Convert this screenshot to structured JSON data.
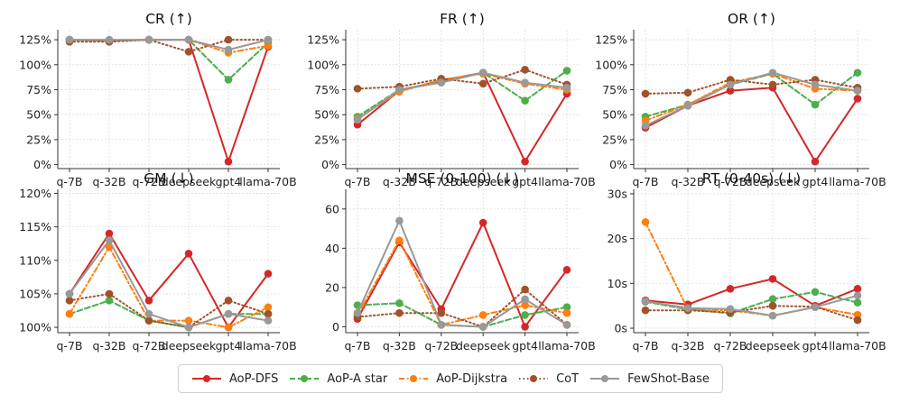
{
  "series_styles": [
    {
      "name": "AoP-DFS",
      "color": "#d62728",
      "dash": "solid"
    },
    {
      "name": "AoP-A star",
      "color": "#4cae4c",
      "dash": "dashed"
    },
    {
      "name": "AoP-Dijkstra",
      "color": "#ff7f0e",
      "dash": "dashdot"
    },
    {
      "name": "CoT",
      "color": "#a0522d",
      "dash": "dotted"
    },
    {
      "name": "FewShot-Base",
      "color": "#999999",
      "dash": "solid"
    }
  ],
  "chart_data": [
    {
      "type": "line",
      "title": "CR (↑)",
      "categories": [
        "q-7B",
        "q-32B",
        "q-72B",
        "deepseek",
        "gpt4",
        "llama-70B"
      ],
      "ylim": [
        -4,
        135
      ],
      "ticks": [
        0,
        25,
        50,
        75,
        100,
        125
      ],
      "tick_labels": [
        "0%",
        "25%",
        "50%",
        "75%",
        "100%",
        "125%"
      ],
      "series": [
        {
          "name": "AoP-DFS",
          "values": [
            125,
            124,
            125,
            125,
            3,
            118
          ]
        },
        {
          "name": "AoP-A star",
          "values": [
            125,
            124,
            125,
            125,
            85,
            122
          ]
        },
        {
          "name": "AoP-Dijkstra",
          "values": [
            125,
            124,
            125,
            125,
            112,
            119
          ]
        },
        {
          "name": "CoT",
          "values": [
            123,
            123,
            125,
            113,
            125,
            125
          ]
        },
        {
          "name": "FewShot-Base",
          "values": [
            125,
            125,
            125,
            125,
            115,
            125
          ]
        }
      ]
    },
    {
      "type": "line",
      "title": "FR (↑)",
      "categories": [
        "q-7B",
        "q-32B",
        "q-72B",
        "deepseek",
        "gpt4",
        "llama-70B"
      ],
      "ylim": [
        -4,
        135
      ],
      "ticks": [
        0,
        25,
        50,
        75,
        100,
        125
      ],
      "tick_labels": [
        "0%",
        "25%",
        "50%",
        "75%",
        "100%",
        "125%"
      ],
      "series": [
        {
          "name": "AoP-DFS",
          "values": [
            40,
            74,
            84,
            92,
            3,
            71
          ]
        },
        {
          "name": "AoP-A star",
          "values": [
            48,
            75,
            83,
            92,
            64,
            94
          ]
        },
        {
          "name": "AoP-Dijkstra",
          "values": [
            46,
            73,
            85,
            91,
            81,
            75
          ]
        },
        {
          "name": "CoT",
          "values": [
            76,
            78,
            86,
            81,
            95,
            80
          ]
        },
        {
          "name": "FewShot-Base",
          "values": [
            45,
            75,
            82,
            92,
            82,
            77
          ]
        }
      ]
    },
    {
      "type": "line",
      "title": "OR (↑)",
      "categories": [
        "q-7B",
        "q-32B",
        "q-72B",
        "deepseek",
        "gpt4",
        "llama-70B"
      ],
      "ylim": [
        -4,
        135
      ],
      "ticks": [
        0,
        25,
        50,
        75,
        100,
        125
      ],
      "tick_labels": [
        "0%",
        "25%",
        "50%",
        "75%",
        "100%",
        "125%"
      ],
      "series": [
        {
          "name": "AoP-DFS",
          "values": [
            37,
            59,
            74,
            77,
            3,
            66
          ]
        },
        {
          "name": "AoP-A star",
          "values": [
            48,
            60,
            80,
            91,
            60,
            92
          ]
        },
        {
          "name": "AoP-Dijkstra",
          "values": [
            44,
            60,
            82,
            91,
            76,
            74
          ]
        },
        {
          "name": "CoT",
          "values": [
            71,
            72,
            85,
            80,
            85,
            77
          ]
        },
        {
          "name": "FewShot-Base",
          "values": [
            39,
            59,
            80,
            92,
            80,
            74
          ]
        }
      ]
    },
    {
      "type": "line",
      "title": "GM (↓)",
      "categories": [
        "q-7B",
        "q-32B",
        "q-72B",
        "deepseek",
        "gpt4",
        "llama-70B"
      ],
      "ylim": [
        99.2,
        120.6
      ],
      "ticks": [
        100,
        105,
        110,
        115,
        120
      ],
      "tick_labels": [
        "100%",
        "105%",
        "110%",
        "115%",
        "120%"
      ],
      "series": [
        {
          "name": "AoP-DFS",
          "values": [
            105,
            114,
            104,
            111,
            100,
            108
          ]
        },
        {
          "name": "AoP-A star",
          "values": [
            102,
            104,
            101,
            100,
            102,
            102
          ]
        },
        {
          "name": "AoP-Dijkstra",
          "values": [
            102,
            112,
            101,
            101,
            100,
            103
          ]
        },
        {
          "name": "CoT",
          "values": [
            104,
            105,
            101,
            100,
            104,
            102
          ]
        },
        {
          "name": "FewShot-Base",
          "values": [
            105,
            113,
            102,
            100,
            102,
            101
          ]
        }
      ]
    },
    {
      "type": "line",
      "title": "MSE (0-100) (↓)",
      "categories": [
        "q-7B",
        "q-32B",
        "q-72B",
        "deepseek",
        "gpt4",
        "llama-70B"
      ],
      "ylim": [
        -3,
        70
      ],
      "ticks": [
        0,
        20,
        40,
        60
      ],
      "tick_labels": [
        "0",
        "20",
        "40",
        "60"
      ],
      "series": [
        {
          "name": "AoP-DFS",
          "values": [
            4,
            43,
            9,
            53,
            0,
            29
          ]
        },
        {
          "name": "AoP-A star",
          "values": [
            11,
            12,
            1,
            0,
            6,
            10
          ]
        },
        {
          "name": "AoP-Dijkstra",
          "values": [
            6,
            44,
            1,
            6,
            11,
            7
          ]
        },
        {
          "name": "CoT",
          "values": [
            5,
            7,
            7,
            0,
            19,
            1
          ]
        },
        {
          "name": "FewShot-Base",
          "values": [
            7,
            54,
            1,
            0,
            14,
            1
          ]
        }
      ]
    },
    {
      "type": "line",
      "title": "RT (0-40s) (↓)",
      "categories": [
        "q-7B",
        "q-32B",
        "q-72B",
        "deepseek",
        "gpt4",
        "llama-70B"
      ],
      "ylim": [
        -1,
        31
      ],
      "ticks": [
        0,
        10,
        20,
        30
      ],
      "tick_labels": [
        "0s",
        "10s",
        "20s",
        "30s"
      ],
      "series": [
        {
          "name": "AoP-DFS",
          "values": [
            6.2,
            5.3,
            8.8,
            11,
            5,
            8.8
          ]
        },
        {
          "name": "AoP-A star",
          "values": [
            5.9,
            4.2,
            3.3,
            6.5,
            8.1,
            5.7
          ]
        },
        {
          "name": "AoP-Dijkstra",
          "values": [
            23.7,
            4.2,
            4,
            2.8,
            4.7,
            3
          ]
        },
        {
          "name": "CoT",
          "values": [
            4,
            4,
            3.5,
            5,
            4.8,
            1.8
          ]
        },
        {
          "name": "FewShot-Base",
          "values": [
            6,
            4.5,
            4.3,
            2.8,
            4.7,
            7.3
          ]
        }
      ]
    }
  ]
}
